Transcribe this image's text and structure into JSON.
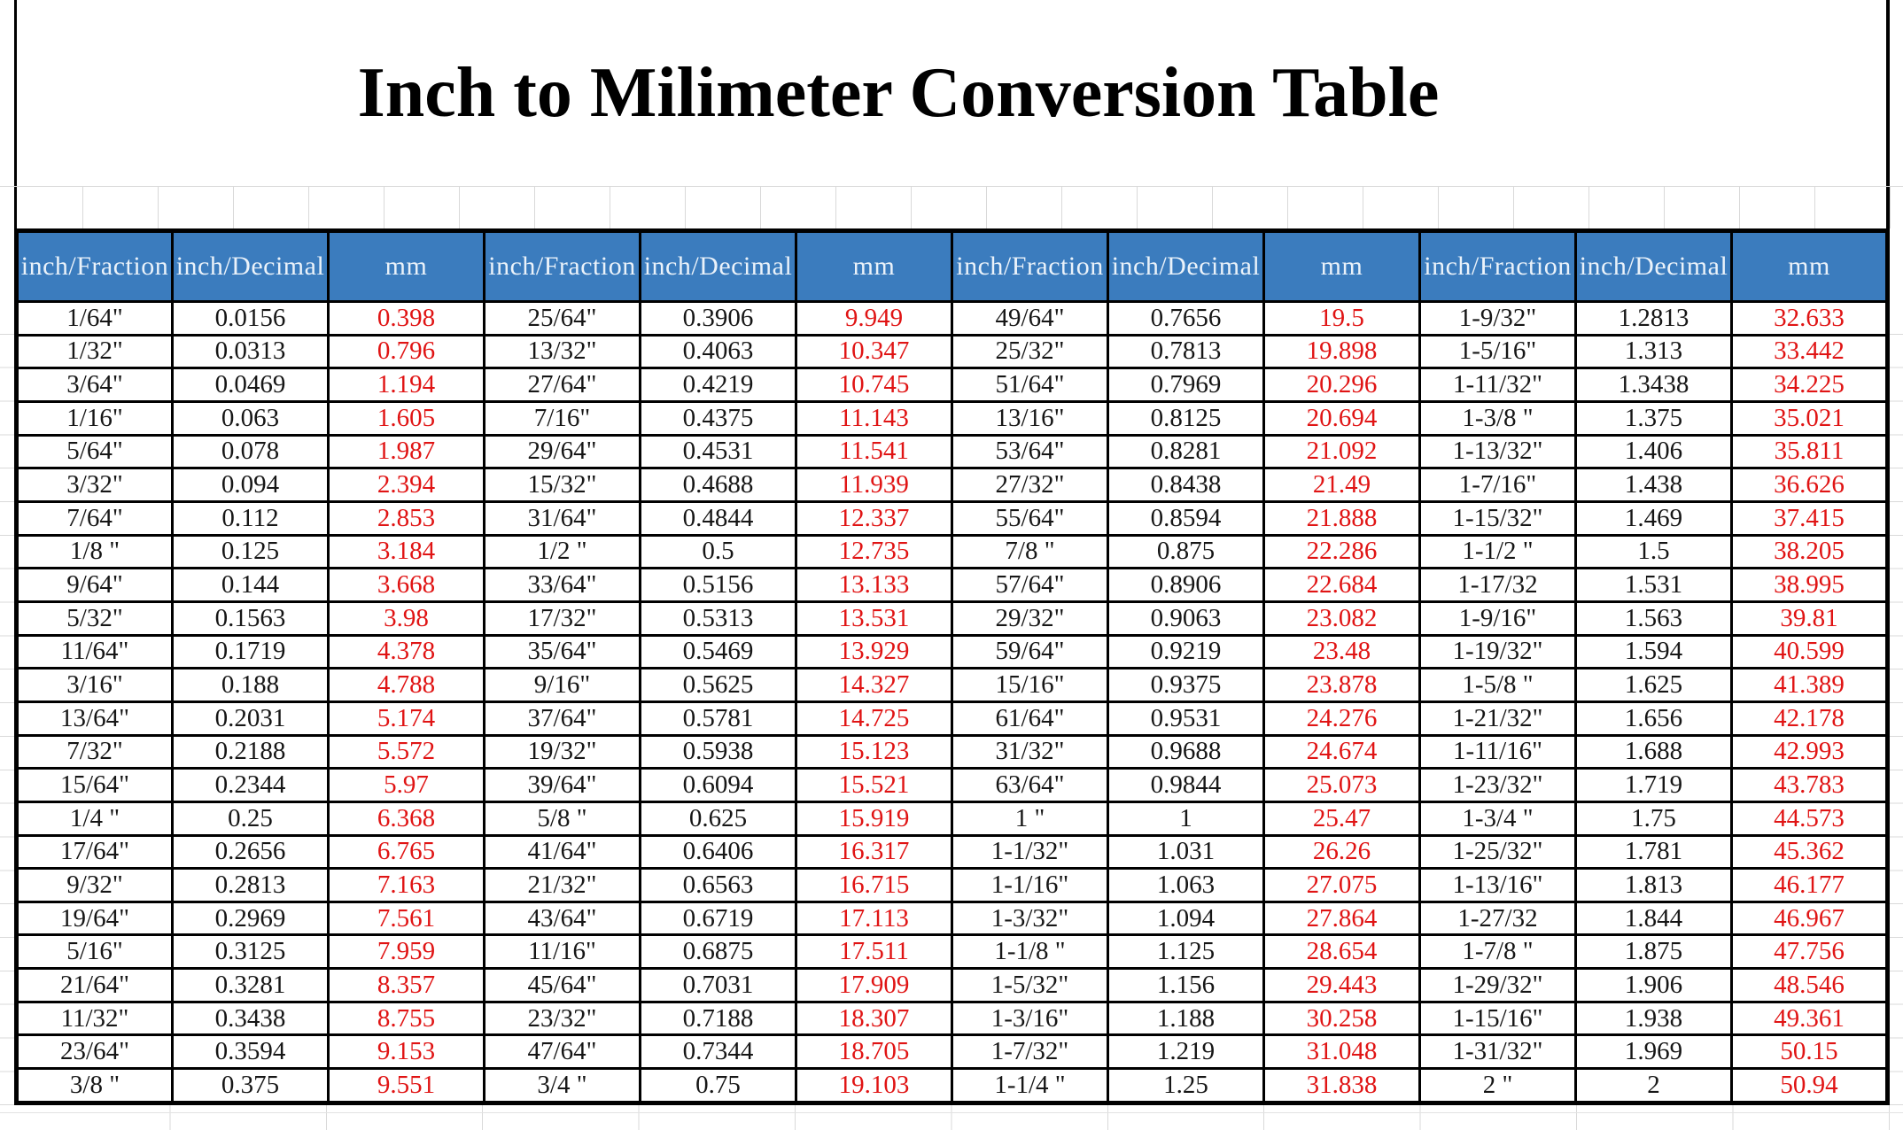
{
  "title": "Inch to Milimeter Conversion Table",
  "colors": {
    "header_bg": "#3b7cbe",
    "header_fg": "#eaf2fa",
    "mm_value_red": "#e01414",
    "body_ink": "#161616",
    "gridline": "#d9d9d9",
    "border_black": "#000000"
  },
  "table": {
    "column_group_labels": [
      "inch/Fraction",
      "inch/Decimal",
      "mm"
    ],
    "headers": [
      "inch/Fraction",
      "inch/Decimal",
      "mm",
      "inch/Fraction",
      "inch/Decimal",
      "mm",
      "inch/Fraction",
      "inch/Decimal",
      "mm",
      "inch/Fraction",
      "inch/Decimal",
      "mm"
    ],
    "rows": [
      [
        "1/64\"",
        "0.0156",
        "0.398",
        "25/64\"",
        "0.3906",
        "9.949",
        "49/64\"",
        "0.7656",
        "19.5",
        "1-9/32\"",
        "1.2813",
        "32.633"
      ],
      [
        "1/32\"",
        "0.0313",
        "0.796",
        "13/32\"",
        "0.4063",
        "10.347",
        "25/32\"",
        "0.7813",
        "19.898",
        "1-5/16\"",
        "1.313",
        "33.442"
      ],
      [
        "3/64\"",
        "0.0469",
        "1.194",
        "27/64\"",
        "0.4219",
        "10.745",
        "51/64\"",
        "0.7969",
        "20.296",
        "1-11/32\"",
        "1.3438",
        "34.225"
      ],
      [
        "1/16\"",
        "0.063",
        "1.605",
        "7/16\"",
        "0.4375",
        "11.143",
        "13/16\"",
        "0.8125",
        "20.694",
        "1-3/8 \"",
        "1.375",
        "35.021"
      ],
      [
        "5/64\"",
        "0.078",
        "1.987",
        "29/64\"",
        "0.4531",
        "11.541",
        "53/64\"",
        "0.8281",
        "21.092",
        "1-13/32\"",
        "1.406",
        "35.811"
      ],
      [
        "3/32\"",
        "0.094",
        "2.394",
        "15/32\"",
        "0.4688",
        "11.939",
        "27/32\"",
        "0.8438",
        "21.49",
        "1-7/16\"",
        "1.438",
        "36.626"
      ],
      [
        "7/64\"",
        "0.112",
        "2.853",
        "31/64\"",
        "0.4844",
        "12.337",
        "55/64\"",
        "0.8594",
        "21.888",
        "1-15/32\"",
        "1.469",
        "37.415"
      ],
      [
        "1/8 \"",
        "0.125",
        "3.184",
        "1/2 \"",
        "0.5",
        "12.735",
        "7/8 \"",
        "0.875",
        "22.286",
        "1-1/2 \"",
        "1.5",
        "38.205"
      ],
      [
        "9/64\"",
        "0.144",
        "3.668",
        "33/64\"",
        "0.5156",
        "13.133",
        "57/64\"",
        "0.8906",
        "22.684",
        "1-17/32",
        "1.531",
        "38.995"
      ],
      [
        "5/32\"",
        "0.1563",
        "3.98",
        "17/32\"",
        "0.5313",
        "13.531",
        "29/32\"",
        "0.9063",
        "23.082",
        "1-9/16\"",
        "1.563",
        "39.81"
      ],
      [
        "11/64\"",
        "0.1719",
        "4.378",
        "35/64\"",
        "0.5469",
        "13.929",
        "59/64\"",
        "0.9219",
        "23.48",
        "1-19/32\"",
        "1.594",
        "40.599"
      ],
      [
        "3/16\"",
        "0.188",
        "4.788",
        "9/16\"",
        "0.5625",
        "14.327",
        "15/16\"",
        "0.9375",
        "23.878",
        "1-5/8 \"",
        "1.625",
        "41.389"
      ],
      [
        "13/64\"",
        "0.2031",
        "5.174",
        "37/64\"",
        "0.5781",
        "14.725",
        "61/64\"",
        "0.9531",
        "24.276",
        "1-21/32\"",
        "1.656",
        "42.178"
      ],
      [
        "7/32\"",
        "0.2188",
        "5.572",
        "19/32\"",
        "0.5938",
        "15.123",
        "31/32\"",
        "0.9688",
        "24.674",
        "1-11/16\"",
        "1.688",
        "42.993"
      ],
      [
        "15/64\"",
        "0.2344",
        "5.97",
        "39/64\"",
        "0.6094",
        "15.521",
        "63/64\"",
        "0.9844",
        "25.073",
        "1-23/32\"",
        "1.719",
        "43.783"
      ],
      [
        "1/4 \"",
        "0.25",
        "6.368",
        "5/8 \"",
        "0.625",
        "15.919",
        "1 \"",
        "1",
        "25.47",
        "1-3/4 \"",
        "1.75",
        "44.573"
      ],
      [
        "17/64\"",
        "0.2656",
        "6.765",
        "41/64\"",
        "0.6406",
        "16.317",
        "1-1/32\"",
        "1.031",
        "26.26",
        "1-25/32\"",
        "1.781",
        "45.362"
      ],
      [
        "9/32\"",
        "0.2813",
        "7.163",
        "21/32\"",
        "0.6563",
        "16.715",
        "1-1/16\"",
        "1.063",
        "27.075",
        "1-13/16\"",
        "1.813",
        "46.177"
      ],
      [
        "19/64\"",
        "0.2969",
        "7.561",
        "43/64\"",
        "0.6719",
        "17.113",
        "1-3/32\"",
        "1.094",
        "27.864",
        "1-27/32",
        "1.844",
        "46.967"
      ],
      [
        "5/16\"",
        "0.3125",
        "7.959",
        "11/16\"",
        "0.6875",
        "17.511",
        "1-1/8 \"",
        "1.125",
        "28.654",
        "1-7/8 \"",
        "1.875",
        "47.756"
      ],
      [
        "21/64\"",
        "0.3281",
        "8.357",
        "45/64\"",
        "0.7031",
        "17.909",
        "1-5/32\"",
        "1.156",
        "29.443",
        "1-29/32\"",
        "1.906",
        "48.546"
      ],
      [
        "11/32\"",
        "0.3438",
        "8.755",
        "23/32\"",
        "0.7188",
        "18.307",
        "1-3/16\"",
        "1.188",
        "30.258",
        "1-15/16\"",
        "1.938",
        "49.361"
      ],
      [
        "23/64\"",
        "0.3594",
        "9.153",
        "47/64\"",
        "0.7344",
        "18.705",
        "1-7/32\"",
        "1.219",
        "31.048",
        "1-31/32\"",
        "1.969",
        "50.15"
      ],
      [
        "3/8 \"",
        "0.375",
        "9.551",
        "3/4 \"",
        "0.75",
        "19.103",
        "1-1/4 \"",
        "1.25",
        "31.838",
        "2 \"",
        "2",
        "50.94"
      ]
    ]
  }
}
